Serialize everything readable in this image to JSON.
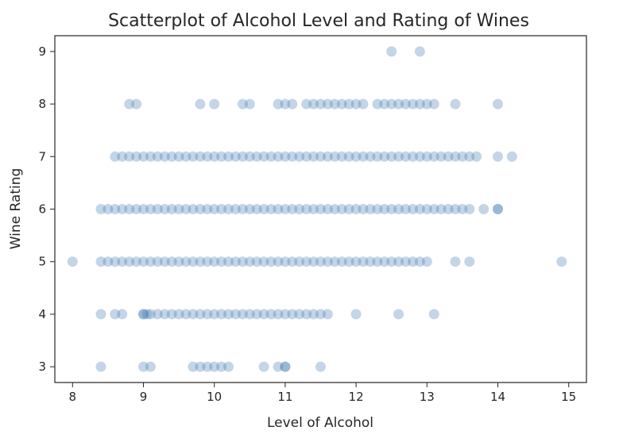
{
  "chart_data": {
    "type": "scatter",
    "title": "Scatterplot of Alcohol Level and Rating of Wines",
    "xlabel": "Level of Alcohol",
    "ylabel": "Wine Rating",
    "xlim": [
      7.75,
      15.25
    ],
    "ylim": [
      2.7,
      9.3
    ],
    "xticks": [
      "8",
      "9",
      "10",
      "11",
      "12",
      "13",
      "14",
      "15"
    ],
    "yticks": [
      "3",
      "4",
      "5",
      "6",
      "7",
      "8",
      "9"
    ],
    "grid": false,
    "point_color": "#3b75af",
    "point_alpha": 0.3,
    "points_by_rating": [
      {
        "y": 3,
        "x": [
          8.4,
          9.0,
          9.1,
          9.7,
          9.8,
          9.9,
          10.0,
          10.1,
          10.2,
          10.7,
          10.9,
          11.0,
          11.0,
          11.5
        ]
      },
      {
        "y": 4,
        "x": [
          8.4,
          8.6,
          8.7,
          9.0,
          9.0,
          9.05,
          9.1,
          9.2,
          9.3,
          9.4,
          9.5,
          9.6,
          9.7,
          9.8,
          9.9,
          10.0,
          10.1,
          10.2,
          10.3,
          10.4,
          10.5,
          10.6,
          10.7,
          10.8,
          10.9,
          11.0,
          11.1,
          11.2,
          11.3,
          11.4,
          11.5,
          11.6,
          12.0,
          12.6,
          13.1
        ]
      },
      {
        "y": 5,
        "x": [
          8.0,
          8.4,
          8.5,
          8.6,
          8.7,
          8.8,
          8.9,
          9.0,
          9.1,
          9.2,
          9.3,
          9.4,
          9.5,
          9.6,
          9.7,
          9.8,
          9.9,
          10.0,
          10.1,
          10.2,
          10.3,
          10.4,
          10.5,
          10.6,
          10.7,
          10.8,
          10.9,
          11.0,
          11.1,
          11.2,
          11.3,
          11.4,
          11.5,
          11.6,
          11.7,
          11.8,
          11.9,
          12.0,
          12.1,
          12.2,
          12.3,
          12.4,
          12.5,
          12.6,
          12.7,
          12.8,
          12.9,
          13.0,
          13.4,
          13.6,
          14.9
        ]
      },
      {
        "y": 6,
        "x": [
          8.4,
          8.5,
          8.6,
          8.7,
          8.8,
          8.9,
          9.0,
          9.1,
          9.2,
          9.3,
          9.4,
          9.5,
          9.6,
          9.7,
          9.8,
          9.9,
          10.0,
          10.1,
          10.2,
          10.3,
          10.4,
          10.5,
          10.6,
          10.7,
          10.8,
          10.9,
          11.0,
          11.1,
          11.2,
          11.3,
          11.4,
          11.5,
          11.6,
          11.7,
          11.8,
          11.9,
          12.0,
          12.1,
          12.2,
          12.3,
          12.4,
          12.5,
          12.6,
          12.7,
          12.8,
          12.9,
          13.0,
          13.1,
          13.2,
          13.3,
          13.4,
          13.5,
          13.6,
          13.8,
          14.0,
          14.0
        ]
      },
      {
        "y": 7,
        "x": [
          8.6,
          8.7,
          8.8,
          8.9,
          9.0,
          9.1,
          9.2,
          9.3,
          9.4,
          9.5,
          9.6,
          9.7,
          9.8,
          9.9,
          10.0,
          10.1,
          10.2,
          10.3,
          10.4,
          10.5,
          10.6,
          10.7,
          10.8,
          10.9,
          11.0,
          11.1,
          11.2,
          11.3,
          11.4,
          11.5,
          11.6,
          11.7,
          11.8,
          11.9,
          12.0,
          12.1,
          12.2,
          12.3,
          12.4,
          12.5,
          12.6,
          12.7,
          12.8,
          12.9,
          13.0,
          13.1,
          13.2,
          13.3,
          13.4,
          13.5,
          13.6,
          13.7,
          14.0,
          14.2
        ]
      },
      {
        "y": 8,
        "x": [
          8.8,
          8.9,
          9.8,
          10.0,
          10.4,
          10.5,
          10.9,
          11.0,
          11.1,
          11.3,
          11.4,
          11.5,
          11.6,
          11.7,
          11.8,
          11.9,
          12.0,
          12.1,
          12.3,
          12.4,
          12.5,
          12.6,
          12.7,
          12.8,
          12.9,
          13.0,
          13.1,
          13.4,
          14.0
        ]
      },
      {
        "y": 9,
        "x": [
          12.5,
          12.9
        ]
      }
    ]
  }
}
